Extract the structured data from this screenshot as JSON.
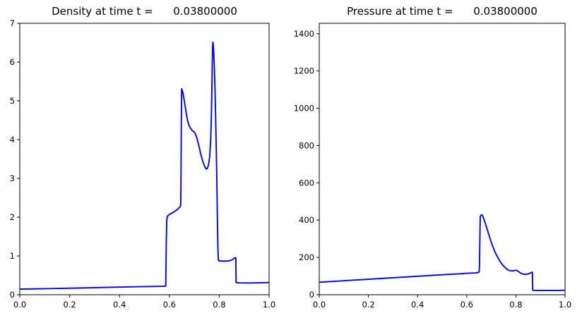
{
  "figure": {
    "background": "#ffffff",
    "axis_color": "#000000",
    "text_color": "#000000",
    "line_color": "#0000ff"
  },
  "chart_data": [
    {
      "type": "line",
      "title": "Density at time t =      0.03800000",
      "xlabel": "",
      "ylabel": "",
      "xlim": [
        0.0,
        1.0
      ],
      "ylim": [
        0.0,
        7.0
      ],
      "grid": false,
      "legend": false,
      "xticks": [
        0.0,
        0.2,
        0.4,
        0.6,
        0.8,
        1.0
      ],
      "xtick_labels": [
        "0.0",
        "0.2",
        "0.4",
        "0.6",
        "0.8",
        "1.0"
      ],
      "yticks": [
        0,
        1,
        2,
        3,
        4,
        5,
        6,
        7
      ],
      "ytick_labels": [
        "0",
        "1",
        "2",
        "3",
        "4",
        "5",
        "6",
        "7"
      ],
      "series": [
        {
          "name": "density",
          "color": "#0000ff",
          "points": [
            [
              0.0,
              0.145
            ],
            [
              0.05,
              0.15
            ],
            [
              0.1,
              0.155
            ],
            [
              0.15,
              0.162
            ],
            [
              0.2,
              0.168
            ],
            [
              0.25,
              0.175
            ],
            [
              0.3,
              0.182
            ],
            [
              0.35,
              0.19
            ],
            [
              0.4,
              0.196
            ],
            [
              0.45,
              0.203
            ],
            [
              0.5,
              0.21
            ],
            [
              0.55,
              0.215
            ],
            [
              0.58,
              0.22
            ],
            [
              0.5855,
              0.225
            ],
            [
              0.5862,
              0.6
            ],
            [
              0.5878,
              1.4
            ],
            [
              0.5895,
              1.9
            ],
            [
              0.5915,
              2.02
            ],
            [
              0.6,
              2.07
            ],
            [
              0.615,
              2.12
            ],
            [
              0.63,
              2.19
            ],
            [
              0.6425,
              2.26
            ],
            [
              0.6455,
              2.32
            ],
            [
              0.6463,
              2.7
            ],
            [
              0.6472,
              3.6
            ],
            [
              0.6482,
              4.6
            ],
            [
              0.6492,
              5.31
            ],
            [
              0.654,
              5.22
            ],
            [
              0.66,
              5.0
            ],
            [
              0.666,
              4.75
            ],
            [
              0.672,
              4.52
            ],
            [
              0.678,
              4.38
            ],
            [
              0.684,
              4.3
            ],
            [
              0.691,
              4.24
            ],
            [
              0.698,
              4.2
            ],
            [
              0.703,
              4.17
            ],
            [
              0.71,
              4.05
            ],
            [
              0.718,
              3.85
            ],
            [
              0.726,
              3.62
            ],
            [
              0.734,
              3.44
            ],
            [
              0.742,
              3.3
            ],
            [
              0.748,
              3.24
            ],
            [
              0.7525,
              3.26
            ],
            [
              0.757,
              3.35
            ],
            [
              0.7615,
              3.55
            ],
            [
              0.7655,
              3.95
            ],
            [
              0.7685,
              4.6
            ],
            [
              0.7705,
              5.3
            ],
            [
              0.772,
              5.95
            ],
            [
              0.7735,
              6.4
            ],
            [
              0.7745,
              6.51
            ],
            [
              0.776,
              6.45
            ],
            [
              0.778,
              6.25
            ],
            [
              0.7805,
              5.85
            ],
            [
              0.783,
              5.3
            ],
            [
              0.7855,
              4.6
            ],
            [
              0.788,
              3.8
            ],
            [
              0.7905,
              2.9
            ],
            [
              0.7925,
              2.0
            ],
            [
              0.7945,
              1.25
            ],
            [
              0.7962,
              0.92
            ],
            [
              0.798,
              0.875
            ],
            [
              0.81,
              0.868
            ],
            [
              0.825,
              0.866
            ],
            [
              0.84,
              0.874
            ],
            [
              0.85,
              0.895
            ],
            [
              0.858,
              0.93
            ],
            [
              0.864,
              0.952
            ],
            [
              0.8665,
              0.955
            ],
            [
              0.8672,
              0.5
            ],
            [
              0.8678,
              0.315
            ],
            [
              0.88,
              0.305
            ],
            [
              0.92,
              0.303
            ],
            [
              0.96,
              0.308
            ],
            [
              1.0,
              0.315
            ]
          ]
        }
      ]
    },
    {
      "type": "line",
      "title": "Pressure at time t =      0.03800000",
      "xlabel": "",
      "ylabel": "",
      "xlim": [
        0.0,
        1.0
      ],
      "ylim": [
        0,
        1456
      ],
      "grid": false,
      "legend": false,
      "xticks": [
        0.0,
        0.2,
        0.4,
        0.6,
        0.8,
        1.0
      ],
      "xtick_labels": [
        "0.0",
        "0.2",
        "0.4",
        "0.6",
        "0.8",
        "1.0"
      ],
      "yticks": [
        0,
        200,
        400,
        600,
        800,
        1000,
        1200,
        1400
      ],
      "ytick_labels": [
        "0",
        "200",
        "400",
        "600",
        "800",
        "1000",
        "1200",
        "1400"
      ],
      "series": [
        {
          "name": "pressure",
          "color": "#0000ff",
          "points": [
            [
              0.0,
              67
            ],
            [
              0.05,
              71
            ],
            [
              0.1,
              75
            ],
            [
              0.15,
              79
            ],
            [
              0.2,
              83
            ],
            [
              0.25,
              87
            ],
            [
              0.3,
              91
            ],
            [
              0.35,
              95
            ],
            [
              0.4,
              99
            ],
            [
              0.45,
              103
            ],
            [
              0.5,
              107
            ],
            [
              0.54,
              110
            ],
            [
              0.57,
              112
            ],
            [
              0.6,
              115
            ],
            [
              0.62,
              116
            ],
            [
              0.635,
              117
            ],
            [
              0.645,
              119
            ],
            [
              0.6505,
              122
            ],
            [
              0.652,
              160
            ],
            [
              0.6535,
              300
            ],
            [
              0.655,
              420
            ],
            [
              0.6585,
              427
            ],
            [
              0.662,
              428
            ],
            [
              0.6655,
              421
            ],
            [
              0.67,
              405
            ],
            [
              0.676,
              381
            ],
            [
              0.683,
              352
            ],
            [
              0.69,
              322
            ],
            [
              0.697,
              293
            ],
            [
              0.704,
              266
            ],
            [
              0.711,
              242
            ],
            [
              0.718,
              221
            ],
            [
              0.725,
              203
            ],
            [
              0.732,
              187
            ],
            [
              0.739,
              172
            ],
            [
              0.746,
              160
            ],
            [
              0.753,
              150
            ],
            [
              0.76,
              141
            ],
            [
              0.767,
              134
            ],
            [
              0.774,
              130
            ],
            [
              0.781,
              128
            ],
            [
              0.788,
              128
            ],
            [
              0.794,
              130
            ],
            [
              0.8,
              131
            ],
            [
              0.806,
              129
            ],
            [
              0.812,
              123
            ],
            [
              0.818,
              117
            ],
            [
              0.824,
              113
            ],
            [
              0.832,
              110
            ],
            [
              0.84,
              109
            ],
            [
              0.848,
              111
            ],
            [
              0.855,
              114
            ],
            [
              0.861,
              118
            ],
            [
              0.8655,
              121
            ],
            [
              0.8672,
              120
            ],
            [
              0.868,
              60
            ],
            [
              0.8685,
              24
            ],
            [
              0.89,
              23
            ],
            [
              0.93,
              23
            ],
            [
              0.97,
              23
            ],
            [
              1.0,
              24
            ]
          ]
        }
      ]
    }
  ]
}
